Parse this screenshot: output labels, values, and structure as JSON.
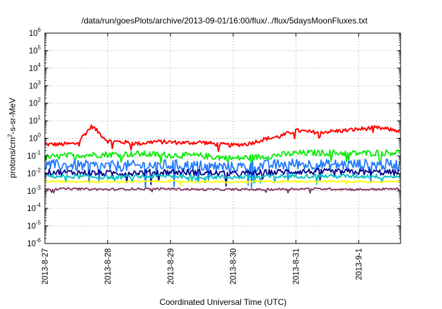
{
  "chart_data": {
    "type": "line",
    "title": "/data/run/goesPlots/archive/2013-09-01/16:00/flux/../flux/5daysMoonFluxes.txt",
    "xlabel": "Coordinated Universal Time (UTC)",
    "ylabel": {
      "main": "protons/cm",
      "sup": "2",
      "rest": "-s-sr-MeV"
    },
    "yscale": "log",
    "ylim": [
      1e-06,
      1000000.0
    ],
    "y_ticks": [
      {
        "base": "10",
        "exp": "6",
        "value": 1000000.0
      },
      {
        "base": "10",
        "exp": "5",
        "value": 100000.0
      },
      {
        "base": "10",
        "exp": "4",
        "value": 10000.0
      },
      {
        "base": "10",
        "exp": "3",
        "value": 1000.0
      },
      {
        "base": "10",
        "exp": "2",
        "value": 100.0
      },
      {
        "base": "10",
        "exp": "1",
        "value": 10.0
      },
      {
        "base": "10",
        "exp": "0",
        "value": 1.0
      },
      {
        "base": "10",
        "exp": "-1",
        "value": 0.1
      },
      {
        "base": "10",
        "exp": "-2",
        "value": 0.01
      },
      {
        "base": "10",
        "exp": "-3",
        "value": 0.001
      },
      {
        "base": "10",
        "exp": "-4",
        "value": 0.0001
      },
      {
        "base": "10",
        "exp": "-5",
        "value": 1e-05
      },
      {
        "base": "10",
        "exp": "-6",
        "value": 1e-06
      }
    ],
    "xlim": [
      "2013-08-27T00:00",
      "2013-09-01T16:00"
    ],
    "x_ticks": [
      {
        "label": "2013-8-27",
        "value": "2013-08-27T00:00"
      },
      {
        "label": "2013-8-28",
        "value": "2013-08-28T00:00"
      },
      {
        "label": "2013-8-29",
        "value": "2013-08-29T00:00"
      },
      {
        "label": "2013-8-30",
        "value": "2013-08-30T00:00"
      },
      {
        "label": "2013-8-31",
        "value": "2013-08-31T00:00"
      },
      {
        "label": "2013-9-1",
        "value": "2013-09-01T00:00"
      }
    ],
    "grid": true,
    "series": [
      {
        "color": "#ff0000",
        "x": [
          "2013-08-27T00:00",
          "2013-08-27T06:00",
          "2013-08-27T12:00",
          "2013-08-27T18:00",
          "2013-08-28T00:00",
          "2013-08-28T06:00",
          "2013-08-28T12:00",
          "2013-08-28T18:00",
          "2013-08-29T00:00",
          "2013-08-29T06:00",
          "2013-08-29T12:00",
          "2013-08-29T18:00",
          "2013-08-30T00:00",
          "2013-08-30T06:00",
          "2013-08-30T12:00",
          "2013-08-30T18:00",
          "2013-08-31T00:00",
          "2013-08-31T06:00",
          "2013-08-31T12:00",
          "2013-08-31T18:00",
          "2013-09-01T00:00",
          "2013-09-01T06:00",
          "2013-09-01T12:00",
          "2013-09-01T16:00"
        ],
        "y": [
          0.45,
          0.45,
          0.5,
          5.0,
          0.7,
          0.6,
          0.5,
          0.65,
          0.6,
          0.55,
          0.6,
          0.45,
          0.4,
          0.5,
          0.9,
          1.3,
          2.8,
          2.2,
          2.4,
          2.7,
          3.3,
          4.0,
          3.2,
          2.6
        ]
      },
      {
        "color": "#00ee00",
        "x": [
          "2013-08-27T00:00",
          "2013-08-27T12:00",
          "2013-08-28T00:00",
          "2013-08-28T12:00",
          "2013-08-29T00:00",
          "2013-08-29T12:00",
          "2013-08-30T00:00",
          "2013-08-30T12:00",
          "2013-08-31T00:00",
          "2013-08-31T12:00",
          "2013-09-01T00:00",
          "2013-09-01T16:00"
        ],
        "y": [
          0.08,
          0.11,
          0.12,
          0.13,
          0.11,
          0.1,
          0.07,
          0.09,
          0.14,
          0.15,
          0.14,
          0.16
        ]
      },
      {
        "color": "#1e78ff",
        "x": [
          "2013-08-27T00:00",
          "2013-08-27T12:00",
          "2013-08-28T00:00",
          "2013-08-28T12:00",
          "2013-08-29T00:00",
          "2013-08-29T12:00",
          "2013-08-30T00:00",
          "2013-08-30T12:00",
          "2013-08-31T00:00",
          "2013-08-31T12:00",
          "2013-09-01T00:00",
          "2013-09-01T16:00"
        ],
        "y": [
          0.03,
          0.028,
          0.025,
          0.027,
          0.03,
          0.026,
          0.022,
          0.028,
          0.035,
          0.03,
          0.032,
          0.03
        ]
      },
      {
        "color": "#00008b",
        "x": [
          "2013-08-27T00:00",
          "2013-08-27T12:00",
          "2013-08-28T00:00",
          "2013-08-28T12:00",
          "2013-08-29T00:00",
          "2013-08-29T12:00",
          "2013-08-30T00:00",
          "2013-08-30T12:00",
          "2013-08-31T00:00",
          "2013-08-31T12:00",
          "2013-09-01T00:00",
          "2013-09-01T16:00"
        ],
        "y": [
          0.012,
          0.011,
          0.01,
          0.011,
          0.012,
          0.011,
          0.009,
          0.011,
          0.013,
          0.012,
          0.012,
          0.011
        ]
      },
      {
        "color": "#00c0c0",
        "x": [
          "2013-08-27T00:00",
          "2013-08-27T12:00",
          "2013-08-28T00:00",
          "2013-08-28T12:00",
          "2013-08-29T00:00",
          "2013-08-29T12:00",
          "2013-08-30T00:00",
          "2013-08-30T12:00",
          "2013-08-31T00:00",
          "2013-08-31T12:00",
          "2013-09-01T00:00",
          "2013-09-01T16:00"
        ],
        "y": [
          0.007,
          0.0065,
          0.006,
          0.0065,
          0.007,
          0.0065,
          0.006,
          0.0065,
          0.007,
          0.007,
          0.0068,
          0.0066
        ]
      },
      {
        "color": "#ffff00",
        "x": [
          "2013-08-27T00:00",
          "2013-08-27T12:00",
          "2013-08-28T00:00",
          "2013-08-28T12:00",
          "2013-08-29T00:00",
          "2013-08-29T12:00",
          "2013-08-30T00:00",
          "2013-08-30T12:00",
          "2013-08-31T00:00",
          "2013-08-31T12:00",
          "2013-09-01T00:00",
          "2013-09-01T16:00"
        ],
        "y": [
          0.0035,
          0.0034,
          0.0033,
          0.0034,
          0.0035,
          0.0033,
          0.0032,
          0.0034,
          0.0035,
          0.0035,
          0.0034,
          0.0034
        ]
      },
      {
        "color": "#7b2e5a",
        "x": [
          "2013-08-27T00:00",
          "2013-08-27T12:00",
          "2013-08-28T00:00",
          "2013-08-28T12:00",
          "2013-08-29T00:00",
          "2013-08-29T12:00",
          "2013-08-30T00:00",
          "2013-08-30T12:00",
          "2013-08-31T00:00",
          "2013-08-31T12:00",
          "2013-09-01T00:00",
          "2013-09-01T16:00"
        ],
        "y": [
          0.0013,
          0.0013,
          0.0012,
          0.0013,
          0.0013,
          0.0012,
          0.0012,
          0.0012,
          0.0013,
          0.0013,
          0.0012,
          0.0013
        ]
      }
    ]
  }
}
